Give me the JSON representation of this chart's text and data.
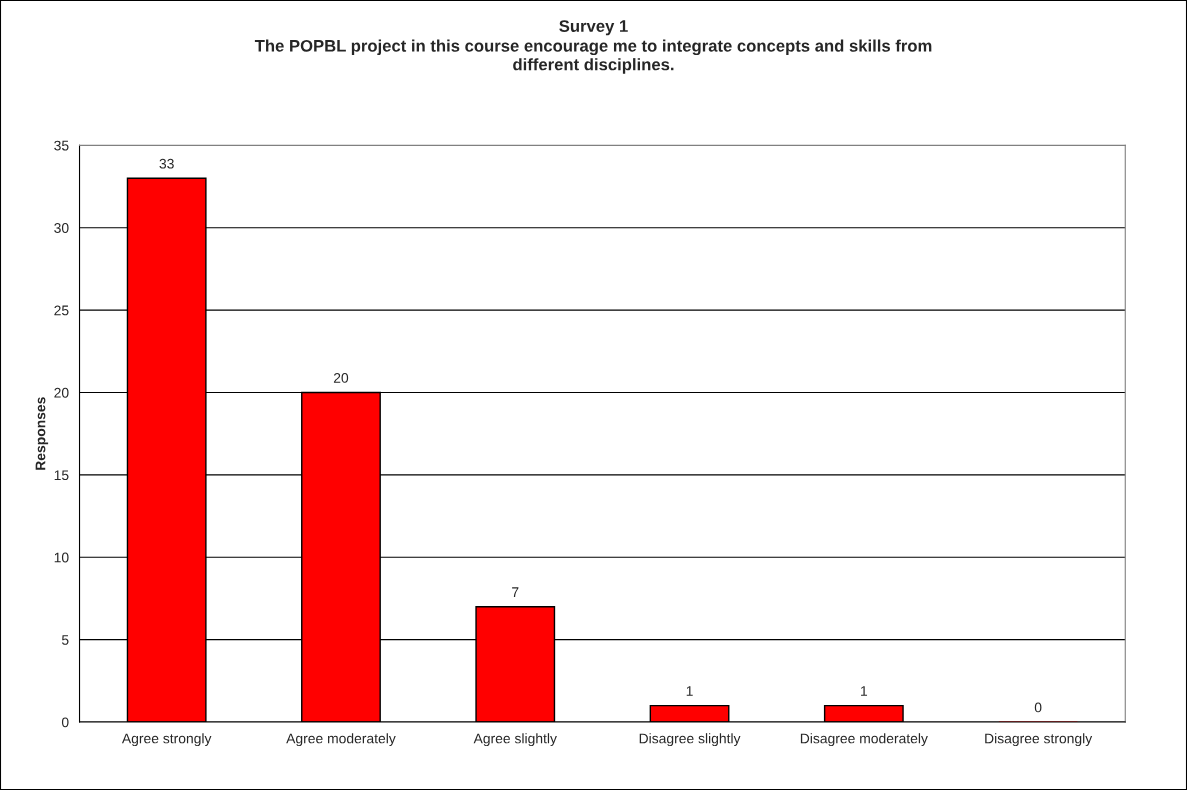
{
  "chart_data": {
    "type": "bar",
    "title": "Survey 1",
    "subtitle": "The POPBL project in this course encourage me to integrate concepts and skills from\ndifferent disciplines.",
    "ylabel": "Responses",
    "categories": [
      "Agree strongly",
      "Agree moderately",
      "Agree slightly",
      "Disagree slightly",
      "Disagree moderately",
      "Disagree strongly"
    ],
    "values": [
      33,
      20,
      7,
      1,
      1,
      0
    ],
    "color": "#ff0000",
    "ylim": [
      0,
      35
    ],
    "yticks": [
      0,
      5,
      10,
      15,
      20,
      25,
      30,
      35
    ],
    "grid": "y",
    "data_labels": true,
    "legend": false
  }
}
